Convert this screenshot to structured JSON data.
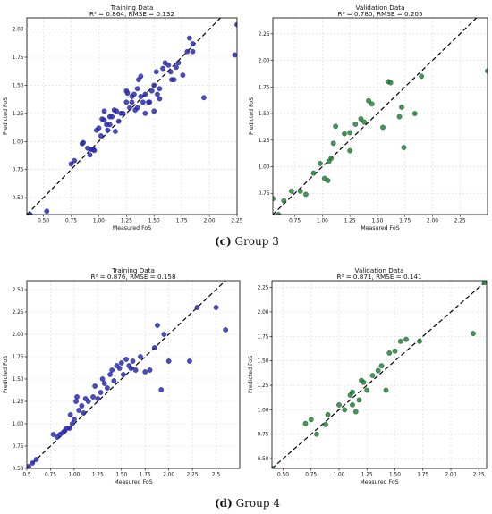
{
  "captions": [
    {
      "label": "(c)",
      "text": " Group 3"
    },
    {
      "label": "(d)",
      "text": " Group 4"
    }
  ],
  "colors": {
    "training": "#2a2ab8",
    "validation": "#1f8a2e",
    "identity_line": "#000000",
    "grid": "#d9d9d9"
  },
  "chart_data": [
    {
      "type": "scatter",
      "title": "Training Data",
      "subtitle": "R² = 0.864, RMSE = 0.132",
      "xlabel": "Measured FoS",
      "ylabel": "Predicted FoS",
      "xlim": [
        0.35,
        2.25
      ],
      "ylim": [
        0.35,
        2.1
      ],
      "xticks": [
        0.5,
        0.75,
        1.0,
        1.25,
        1.5,
        1.75,
        2.0,
        2.25
      ],
      "yticks": [
        0.5,
        0.75,
        1.0,
        1.25,
        1.5,
        1.75,
        2.0
      ],
      "tick_labels_x": [
        "0.50",
        "0.75",
        "1.00",
        "1.25",
        "1.50",
        "1.75",
        "2.00",
        "2.25"
      ],
      "tick_labels_y": [
        "0.50",
        "0.75",
        "1.00",
        "1.25",
        "1.50",
        "1.75",
        "2.00"
      ],
      "grid": true,
      "identity_line": true,
      "marker_color": "#2a2ab8",
      "points": [
        [
          0.38,
          0.35
        ],
        [
          0.53,
          0.38
        ],
        [
          0.75,
          0.8
        ],
        [
          0.78,
          0.83
        ],
        [
          0.85,
          0.98
        ],
        [
          0.86,
          0.99
        ],
        [
          0.9,
          0.94
        ],
        [
          0.92,
          0.88
        ],
        [
          0.93,
          0.93
        ],
        [
          0.95,
          0.93
        ],
        [
          0.96,
          0.92
        ],
        [
          0.98,
          1.1
        ],
        [
          1.0,
          1.12
        ],
        [
          1.02,
          1.05
        ],
        [
          1.03,
          1.2
        ],
        [
          1.05,
          1.27
        ],
        [
          1.05,
          1.19
        ],
        [
          1.07,
          1.15
        ],
        [
          1.08,
          1.1
        ],
        [
          1.1,
          1.15
        ],
        [
          1.1,
          1.22
        ],
        [
          1.12,
          1.22
        ],
        [
          1.14,
          1.28
        ],
        [
          1.15,
          1.09
        ],
        [
          1.16,
          1.27
        ],
        [
          1.18,
          1.18
        ],
        [
          1.2,
          1.25
        ],
        [
          1.22,
          1.25
        ],
        [
          1.25,
          1.35
        ],
        [
          1.25,
          1.45
        ],
        [
          1.26,
          1.43
        ],
        [
          1.28,
          1.3
        ],
        [
          1.3,
          1.4
        ],
        [
          1.3,
          1.35
        ],
        [
          1.32,
          1.42
        ],
        [
          1.33,
          1.28
        ],
        [
          1.35,
          1.3
        ],
        [
          1.35,
          1.47
        ],
        [
          1.36,
          1.55
        ],
        [
          1.38,
          1.58
        ],
        [
          1.38,
          1.4
        ],
        [
          1.4,
          1.35
        ],
        [
          1.42,
          1.25
        ],
        [
          1.42,
          1.42
        ],
        [
          1.45,
          1.35
        ],
        [
          1.46,
          1.35
        ],
        [
          1.48,
          1.45
        ],
        [
          1.5,
          1.5
        ],
        [
          1.5,
          1.27
        ],
        [
          1.52,
          1.62
        ],
        [
          1.53,
          1.42
        ],
        [
          1.55,
          1.47
        ],
        [
          1.55,
          1.38
        ],
        [
          1.58,
          1.65
        ],
        [
          1.6,
          1.7
        ],
        [
          1.63,
          1.68
        ],
        [
          1.65,
          1.62
        ],
        [
          1.66,
          1.55
        ],
        [
          1.68,
          1.55
        ],
        [
          1.7,
          1.66
        ],
        [
          1.72,
          1.7
        ],
        [
          1.76,
          1.59
        ],
        [
          1.8,
          1.8
        ],
        [
          1.82,
          1.92
        ],
        [
          1.85,
          1.87
        ],
        [
          1.85,
          1.8
        ],
        [
          1.95,
          1.39
        ],
        [
          2.23,
          1.77
        ],
        [
          2.25,
          2.04
        ]
      ]
    },
    {
      "type": "scatter",
      "title": "Validation Data",
      "subtitle": "R² = 0.780, RMSE = 0.205",
      "xlabel": "Measured FoS",
      "ylabel": "Predicted FoS",
      "xlim": [
        0.55,
        2.5
      ],
      "ylim": [
        0.55,
        2.4
      ],
      "xticks": [
        0.75,
        1.0,
        1.25,
        1.5,
        1.75,
        2.0,
        2.25
      ],
      "yticks": [
        0.75,
        1.0,
        1.25,
        1.5,
        1.75,
        2.0,
        2.25
      ],
      "tick_labels_x": [
        "0.75",
        "1.00",
        "1.25",
        "1.50",
        "1.75",
        "2.00",
        "2.25"
      ],
      "tick_labels_y": [
        "0.75",
        "1.00",
        "1.25",
        "1.50",
        "1.75",
        "2.00",
        "2.25"
      ],
      "grid": true,
      "identity_line": true,
      "marker_color": "#1f8a2e",
      "points": [
        [
          0.55,
          0.7
        ],
        [
          0.6,
          0.55
        ],
        [
          0.65,
          0.68
        ],
        [
          0.72,
          0.77
        ],
        [
          0.8,
          0.77
        ],
        [
          0.85,
          0.74
        ],
        [
          0.92,
          0.94
        ],
        [
          0.98,
          1.03
        ],
        [
          1.02,
          0.89
        ],
        [
          1.05,
          0.87
        ],
        [
          1.06,
          1.05
        ],
        [
          1.08,
          1.08
        ],
        [
          1.1,
          1.22
        ],
        [
          1.12,
          1.38
        ],
        [
          1.2,
          1.31
        ],
        [
          1.25,
          1.32
        ],
        [
          1.25,
          1.15
        ],
        [
          1.3,
          1.4
        ],
        [
          1.35,
          1.45
        ],
        [
          1.38,
          1.42
        ],
        [
          1.42,
          1.62
        ],
        [
          1.45,
          1.59
        ],
        [
          1.55,
          1.37
        ],
        [
          1.6,
          1.8
        ],
        [
          1.62,
          1.79
        ],
        [
          1.7,
          1.47
        ],
        [
          1.72,
          1.56
        ],
        [
          1.74,
          1.18
        ],
        [
          1.84,
          1.5
        ],
        [
          1.9,
          1.85
        ],
        [
          2.5,
          1.9
        ]
      ]
    },
    {
      "type": "scatter",
      "title": "Training Data",
      "subtitle": "R² = 0.876, RMSE = 0.158",
      "xlabel": "Measured FoS",
      "ylabel": "Predicted FoS",
      "xlim": [
        0.5,
        2.75
      ],
      "ylim": [
        0.5,
        2.6
      ],
      "xticks": [
        0.5,
        0.75,
        1.0,
        1.25,
        1.5,
        1.75,
        2.0,
        2.25,
        2.5
      ],
      "yticks": [
        0.5,
        0.75,
        1.0,
        1.25,
        1.5,
        1.75,
        2.0,
        2.25,
        2.5
      ],
      "tick_labels_x": [
        "0.5",
        "0.75",
        "1.00",
        "1.25",
        "1.50",
        "1.75",
        "2.00",
        "2.25",
        "2.5"
      ],
      "tick_labels_y": [
        "0.50",
        "0.75",
        "1.00",
        "1.25",
        "1.50",
        "1.75",
        "2.00",
        "2.25",
        "2.50"
      ],
      "grid": true,
      "identity_line": true,
      "marker_color": "#2a2ab8",
      "points": [
        [
          0.52,
          0.52
        ],
        [
          0.56,
          0.56
        ],
        [
          0.6,
          0.6
        ],
        [
          0.78,
          0.88
        ],
        [
          0.82,
          0.85
        ],
        [
          0.85,
          0.88
        ],
        [
          0.88,
          0.9
        ],
        [
          0.9,
          0.92
        ],
        [
          0.92,
          0.95
        ],
        [
          0.95,
          0.95
        ],
        [
          0.96,
          1.1
        ],
        [
          0.98,
          1.0
        ],
        [
          1.0,
          1.05
        ],
        [
          1.02,
          1.25
        ],
        [
          1.03,
          1.3
        ],
        [
          1.05,
          1.15
        ],
        [
          1.08,
          1.2
        ],
        [
          1.1,
          1.12
        ],
        [
          1.12,
          1.28
        ],
        [
          1.15,
          1.25
        ],
        [
          1.2,
          1.3
        ],
        [
          1.22,
          1.42
        ],
        [
          1.25,
          1.28
        ],
        [
          1.28,
          1.35
        ],
        [
          1.3,
          1.5
        ],
        [
          1.32,
          1.45
        ],
        [
          1.35,
          1.4
        ],
        [
          1.38,
          1.55
        ],
        [
          1.4,
          1.6
        ],
        [
          1.42,
          1.48
        ],
        [
          1.45,
          1.65
        ],
        [
          1.48,
          1.62
        ],
        [
          1.5,
          1.68
        ],
        [
          1.52,
          1.55
        ],
        [
          1.55,
          1.72
        ],
        [
          1.58,
          1.65
        ],
        [
          1.6,
          1.62
        ],
        [
          1.62,
          1.7
        ],
        [
          1.65,
          1.6
        ],
        [
          1.7,
          1.75
        ],
        [
          1.75,
          1.58
        ],
        [
          1.8,
          1.6
        ],
        [
          1.85,
          1.85
        ],
        [
          1.88,
          2.1
        ],
        [
          1.92,
          1.38
        ],
        [
          1.95,
          2.0
        ],
        [
          2.0,
          1.7
        ],
        [
          2.22,
          1.7
        ],
        [
          2.3,
          2.3
        ],
        [
          2.5,
          2.3
        ],
        [
          2.6,
          2.05
        ]
      ]
    },
    {
      "type": "scatter",
      "title": "Validation Data",
      "subtitle": "R² = 0.871, RMSE = 0.141",
      "xlabel": "Measured FoS",
      "ylabel": "Predicted FoS",
      "xlim": [
        0.4,
        2.32
      ],
      "ylim": [
        0.4,
        2.32
      ],
      "xticks": [
        0.5,
        0.75,
        1.0,
        1.25,
        1.5,
        1.75,
        2.0,
        2.25
      ],
      "yticks": [
        0.5,
        0.75,
        1.0,
        1.25,
        1.5,
        1.75,
        2.0,
        2.25
      ],
      "tick_labels_x": [
        "0.50",
        "0.75",
        "1.00",
        "1.25",
        "1.50",
        "1.75",
        "2.00",
        "2.25"
      ],
      "tick_labels_y": [
        "0.50",
        "0.75",
        "1.00",
        "1.25",
        "1.50",
        "1.75",
        "2.00",
        "2.25"
      ],
      "grid": true,
      "identity_line": true,
      "marker_color": "#1f8a2e",
      "points": [
        [
          0.4,
          0.4
        ],
        [
          0.7,
          0.86
        ],
        [
          0.75,
          0.9
        ],
        [
          0.8,
          0.75
        ],
        [
          0.88,
          0.85
        ],
        [
          0.9,
          0.95
        ],
        [
          1.0,
          1.05
        ],
        [
          1.05,
          1.0
        ],
        [
          1.1,
          1.15
        ],
        [
          1.12,
          1.18
        ],
        [
          1.12,
          1.05
        ],
        [
          1.15,
          0.98
        ],
        [
          1.18,
          1.1
        ],
        [
          1.2,
          1.3
        ],
        [
          1.22,
          1.28
        ],
        [
          1.25,
          1.2
        ],
        [
          1.3,
          1.35
        ],
        [
          1.35,
          1.4
        ],
        [
          1.38,
          1.45
        ],
        [
          1.42,
          1.2
        ],
        [
          1.45,
          1.58
        ],
        [
          1.5,
          1.6
        ],
        [
          1.55,
          1.7
        ],
        [
          1.6,
          1.72
        ],
        [
          1.72,
          1.7
        ],
        [
          2.2,
          1.78
        ],
        [
          2.3,
          2.3
        ]
      ]
    }
  ]
}
